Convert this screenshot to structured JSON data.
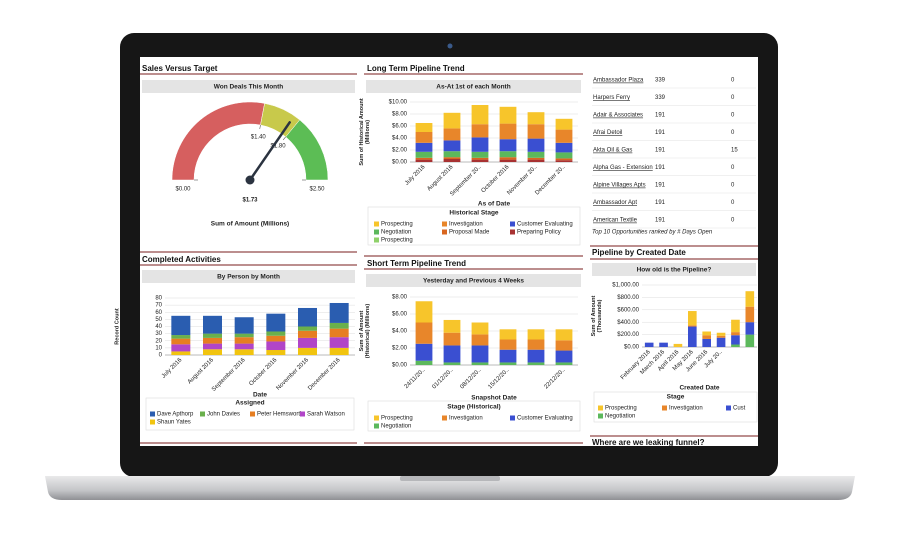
{
  "panels": [
    {
      "title": "Sales Versus Target"
    },
    {
      "title": "Long Term Pipeline Trend"
    },
    {
      "title": "Completed Activities"
    },
    {
      "title": "Short Term Pipeline Trend"
    },
    {
      "title": "Pipeline by Created Date"
    },
    {
      "title": "Where are we leaking funnel?"
    }
  ],
  "table": {
    "rows": [
      [
        "Ambassador Plaza",
        339,
        0
      ],
      [
        "Harpers Ferry",
        339,
        0
      ],
      [
        "Adair & Associates",
        191,
        0
      ],
      [
        "Afrai Detoil",
        191,
        0
      ],
      [
        "Akta Oil & Gas",
        191,
        15
      ],
      [
        "Alpha Gas - Extension",
        191,
        0
      ],
      [
        "Alpine Villages Apts",
        191,
        0
      ],
      [
        "Ambassador Apt",
        191,
        0
      ],
      [
        "American Textile",
        191,
        0
      ]
    ],
    "caption": "Top 10 Opportunities ranked by # Days Open"
  },
  "chart_data": [
    {
      "type": "gauge",
      "title": "Won Deals This Month",
      "value": 1.73,
      "value_label": "$1.73",
      "ylim": [
        0,
        2.5
      ],
      "yticks": [
        {
          "value": 0,
          "label": "$0.00"
        },
        {
          "value": 1.4,
          "label": "$1.40"
        },
        {
          "value": 1.8,
          "label": "$1.80"
        },
        {
          "value": 2.5,
          "label": "$2.50"
        }
      ],
      "band_colors": [
        "#d65f5f",
        "#c8c94b",
        "#5cbd55"
      ],
      "axis_label": "Sum of Amount (Millions)"
    },
    {
      "type": "bar",
      "stacked": true,
      "title": "As-At 1st of each Month",
      "grid": true,
      "categories": [
        "July 2016",
        "August 2016",
        "September 20..",
        "October 2016",
        "November 20..",
        "December 20.."
      ],
      "ylim": [
        0,
        10
      ],
      "yticks": [
        {
          "value": 0,
          "label": "$0.00"
        },
        {
          "value": 2,
          "label": "$2.00"
        },
        {
          "value": 4,
          "label": "$4.00"
        },
        {
          "value": 6,
          "label": "$6.00"
        },
        {
          "value": 8,
          "label": "$8.00"
        },
        {
          "value": 10,
          "label": "$10.00"
        }
      ],
      "ylabel": "Sum of Historical Amount (Millions)",
      "xlabel": "As of Date",
      "legend_title": "Historical Stage",
      "series": [
        {
          "name": "Prospecting",
          "color": "#f7c52b",
          "values": [
            1.5,
            2.6,
            3.2,
            2.8,
            2.0,
            1.8
          ]
        },
        {
          "name": "Investigation",
          "color": "#e8862a",
          "values": [
            1.8,
            2.0,
            2.2,
            2.6,
            2.4,
            2.2
          ]
        },
        {
          "name": "Customer Evaluating",
          "color": "#3a4fd1",
          "values": [
            1.5,
            1.8,
            2.4,
            2.0,
            2.2,
            1.6
          ]
        },
        {
          "name": "Negotiation",
          "color": "#5cb85c",
          "values": [
            1.0,
            1.0,
            1.0,
            1.0,
            1.0,
            1.0
          ]
        },
        {
          "name": "Proposal Made",
          "color": "#d9661f",
          "values": [
            0.3,
            0.3,
            0.3,
            0.4,
            0.3,
            0.3
          ]
        },
        {
          "name": "Preparing Policy",
          "color": "#a83232",
          "values": [
            0.4,
            0.5,
            0.4,
            0.4,
            0.4,
            0.3
          ]
        },
        {
          "name": "Prospecting",
          "color": "#8fd16a",
          "values": [
            null,
            null,
            null,
            null,
            null,
            null
          ]
        }
      ]
    },
    {
      "type": "bar",
      "stacked": true,
      "title": "By Person by Month",
      "grid": true,
      "categories": [
        "July 2016",
        "August 2016",
        "September 2016",
        "October 2016",
        "November 2016",
        "December 2016"
      ],
      "ylim": [
        0,
        80
      ],
      "yticks": [
        0,
        10,
        20,
        30,
        40,
        50,
        60,
        70,
        80
      ],
      "ylabel": "Record Count",
      "xlabel": "Date",
      "legend_title": "Assigned",
      "series": [
        {
          "name": "Dave Apthorp",
          "color": "#2a5db0",
          "values": [
            27,
            25,
            23,
            25,
            26,
            28
          ]
        },
        {
          "name": "John Davies",
          "color": "#6ab04c",
          "values": [
            5,
            6,
            5,
            6,
            6,
            8
          ]
        },
        {
          "name": "Peter Hemsworth",
          "color": "#e67e22",
          "values": [
            8,
            8,
            9,
            8,
            10,
            12
          ]
        },
        {
          "name": "Sarah Watson",
          "color": "#b145c8",
          "values": [
            10,
            8,
            8,
            12,
            14,
            15
          ]
        },
        {
          "name": "Shaun Yates",
          "color": "#f1c40f",
          "values": [
            5,
            8,
            8,
            7,
            10,
            10
          ]
        }
      ]
    },
    {
      "type": "bar",
      "stacked": true,
      "title": "Yesterday and Previous 4 Weeks",
      "grid": true,
      "categories": [
        "24/11/20..",
        "01/12/20..",
        "08/12/20..",
        "15/12/20..",
        null,
        "22/12/20.."
      ],
      "ylim": [
        0,
        8
      ],
      "yticks": [
        {
          "value": 0,
          "label": "$0.00"
        },
        {
          "value": 2,
          "label": "$2.00"
        },
        {
          "value": 4,
          "label": "$4.00"
        },
        {
          "value": 6,
          "label": "$6.00"
        },
        {
          "value": 8,
          "label": "$8.00"
        }
      ],
      "ylabel": "Sum of Amount (Historical) (Millions)",
      "xlabel": "Snapshot Date",
      "legend_title": "Stage (Historical)",
      "series": [
        {
          "name": "Prospecting",
          "color": "#f7c52b",
          "values": [
            2.5,
            1.5,
            1.4,
            1.2,
            1.2,
            1.3
          ]
        },
        {
          "name": "Investigation",
          "color": "#e8862a",
          "values": [
            2.5,
            1.5,
            1.3,
            1.2,
            1.2,
            1.2
          ]
        },
        {
          "name": "Customer Evaluating",
          "color": "#3a4fd1",
          "values": [
            2.0,
            2.0,
            2.0,
            1.5,
            1.5,
            1.4
          ]
        },
        {
          "name": "Negotiation",
          "color": "#5cb85c",
          "values": [
            0.5,
            0.3,
            0.3,
            0.3,
            0.3,
            0.3
          ]
        }
      ]
    },
    {
      "type": "bar",
      "stacked": true,
      "title": "How old is the Pipeline?",
      "grid": true,
      "categories": [
        "February 2016",
        "March 2016",
        "April 2016",
        "May 2016",
        "June 2016",
        "July 20..",
        null,
        null
      ],
      "ylim": [
        0,
        1000
      ],
      "yticks": [
        {
          "value": 0,
          "label": "$0.00"
        },
        {
          "value": 200,
          "label": "$200.00"
        },
        {
          "value": 400,
          "label": "$400.00"
        },
        {
          "value": 600,
          "label": "$600.00"
        },
        {
          "value": 800,
          "label": "$800.00"
        },
        {
          "value": 1000,
          "label": "$1,000.00"
        }
      ],
      "ylabel": "Sum of Amount (Thousands)",
      "xlabel": "Created Date",
      "legend_title": "Stage",
      "series": [
        {
          "name": "Prospecting",
          "color": "#f7c52b",
          "values": [
            null,
            null,
            50,
            230,
            60,
            50,
            200,
            250
          ]
        },
        {
          "name": "Investigation",
          "color": "#e8862a",
          "values": [
            null,
            null,
            null,
            20,
            60,
            30,
            50,
            250
          ]
        },
        {
          "name": "Cust",
          "color": "#3a4fd1",
          "values": [
            70,
            70,
            null,
            330,
            130,
            150,
            150,
            200
          ]
        },
        {
          "name": "Negotiation",
          "color": "#5cb85c",
          "values": [
            null,
            null,
            null,
            null,
            null,
            null,
            40,
            200
          ]
        }
      ]
    }
  ]
}
